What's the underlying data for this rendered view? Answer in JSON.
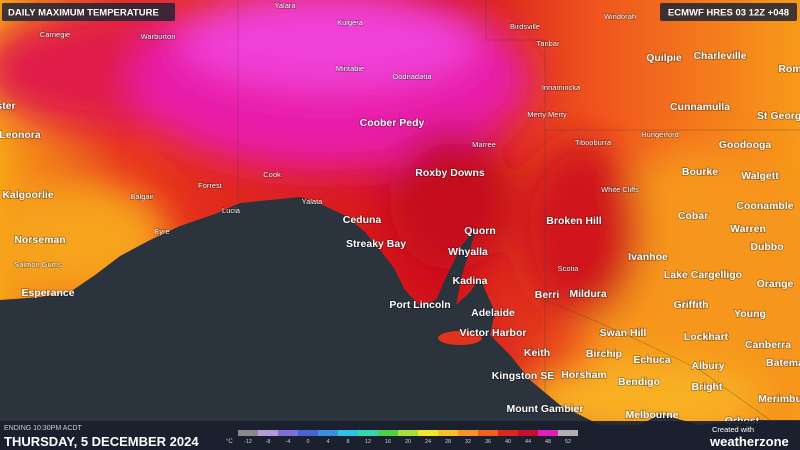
{
  "header": {
    "title": "DAILY MAXIMUM TEMPERATURE",
    "model": "ECMWF HRES 03 12Z +048"
  },
  "footer": {
    "ending": "ENDING 10:30PM ACDT",
    "date": "THURSDAY, 5 DECEMBER 2024",
    "credit": "Created with",
    "brand": "weatherzone"
  },
  "legend": {
    "unit": "°C",
    "ticks": [
      -12,
      -8,
      -4,
      0,
      4,
      8,
      12,
      16,
      20,
      24,
      28,
      32,
      36,
      40,
      44,
      48,
      52
    ],
    "colors": [
      "#8a8a8a",
      "#b59ad8",
      "#7c6fd6",
      "#4b63d8",
      "#3c8ee0",
      "#2fc0e6",
      "#35d6b0",
      "#4fd04a",
      "#a6de3a",
      "#f0e62c",
      "#f8c12a",
      "#f79428",
      "#f2611e",
      "#e0261c",
      "#c8102e",
      "#e020b8",
      "#b0b0b0"
    ]
  },
  "places": [
    {
      "name": "Yalara",
      "major": false
    },
    {
      "name": "Kulgera",
      "major": false
    },
    {
      "name": "Birdsville",
      "major": false
    },
    {
      "name": "Windorah",
      "major": false
    },
    {
      "name": "Carnegie",
      "major": false
    },
    {
      "name": "Warburton",
      "major": false
    },
    {
      "name": "Tanbar",
      "major": false
    },
    {
      "name": "Quilpie",
      "major": true
    },
    {
      "name": "Charleville",
      "major": true
    },
    {
      "name": "Rom",
      "major": true
    },
    {
      "name": "Mintabie",
      "major": false
    },
    {
      "name": "Oodnadatta",
      "major": false
    },
    {
      "name": "Innamincka",
      "major": false
    },
    {
      "name": "ster",
      "major": true
    },
    {
      "name": "Cunnamulla",
      "major": true
    },
    {
      "name": "St George",
      "major": true
    },
    {
      "name": "Merty Merty",
      "major": false
    },
    {
      "name": "Coober Pedy",
      "major": true
    },
    {
      "name": "Leonora",
      "major": true
    },
    {
      "name": "Hungerford",
      "major": false
    },
    {
      "name": "Marree",
      "major": false
    },
    {
      "name": "Tibooburra",
      "major": false
    },
    {
      "name": "Goodooga",
      "major": true
    },
    {
      "name": "Bourke",
      "major": true
    },
    {
      "name": "Walgett",
      "major": true
    },
    {
      "name": "Roxby Downs",
      "major": true
    },
    {
      "name": "Cook",
      "major": false
    },
    {
      "name": "Forrest",
      "major": false
    },
    {
      "name": "White Cliffs",
      "major": false
    },
    {
      "name": "Kalgoorlie",
      "major": true
    },
    {
      "name": "Balgair",
      "major": false
    },
    {
      "name": "Yalata",
      "major": false
    },
    {
      "name": "Coonamble",
      "major": true
    },
    {
      "name": "Lucia",
      "major": false
    },
    {
      "name": "Eyre",
      "major": false
    },
    {
      "name": "Ceduna",
      "major": true
    },
    {
      "name": "Broken Hill",
      "major": true
    },
    {
      "name": "Cobar",
      "major": true
    },
    {
      "name": "Quorn",
      "major": true
    },
    {
      "name": "Warren",
      "major": true
    },
    {
      "name": "Norseman",
      "major": true
    },
    {
      "name": "Streaky Bay",
      "major": true
    },
    {
      "name": "Whyalla",
      "major": true
    },
    {
      "name": "Dubbo",
      "major": true
    },
    {
      "name": "Ivanhoe",
      "major": true
    },
    {
      "name": "Salmon Gums",
      "major": false
    },
    {
      "name": "Scotia",
      "major": false
    },
    {
      "name": "Lake Cargelligo",
      "major": true
    },
    {
      "name": "Kadina",
      "major": true
    },
    {
      "name": "Orange",
      "major": true
    },
    {
      "name": "Esperance",
      "major": true
    },
    {
      "name": "Berri",
      "major": true
    },
    {
      "name": "Mildura",
      "major": true
    },
    {
      "name": "Griffith",
      "major": true
    },
    {
      "name": "Port Lincoln",
      "major": true
    },
    {
      "name": "Adelaide",
      "major": true
    },
    {
      "name": "Young",
      "major": true
    },
    {
      "name": "Victor Harbor",
      "major": true
    },
    {
      "name": "Swan Hill",
      "major": true
    },
    {
      "name": "Lockhart",
      "major": true
    },
    {
      "name": "Canberra",
      "major": true
    },
    {
      "name": "Keith",
      "major": true
    },
    {
      "name": "Birchip",
      "major": true
    },
    {
      "name": "Echuca",
      "major": true
    },
    {
      "name": "Albury",
      "major": true
    },
    {
      "name": "Batema",
      "major": true
    },
    {
      "name": "Kingston SE",
      "major": true
    },
    {
      "name": "Horsham",
      "major": true
    },
    {
      "name": "Bendigo",
      "major": true
    },
    {
      "name": "Bright",
      "major": true
    },
    {
      "name": "Merimbu",
      "major": true
    },
    {
      "name": "Mount Gambier",
      "major": true
    },
    {
      "name": "Melbourne",
      "major": true
    },
    {
      "name": "Orbost",
      "major": true
    }
  ]
}
